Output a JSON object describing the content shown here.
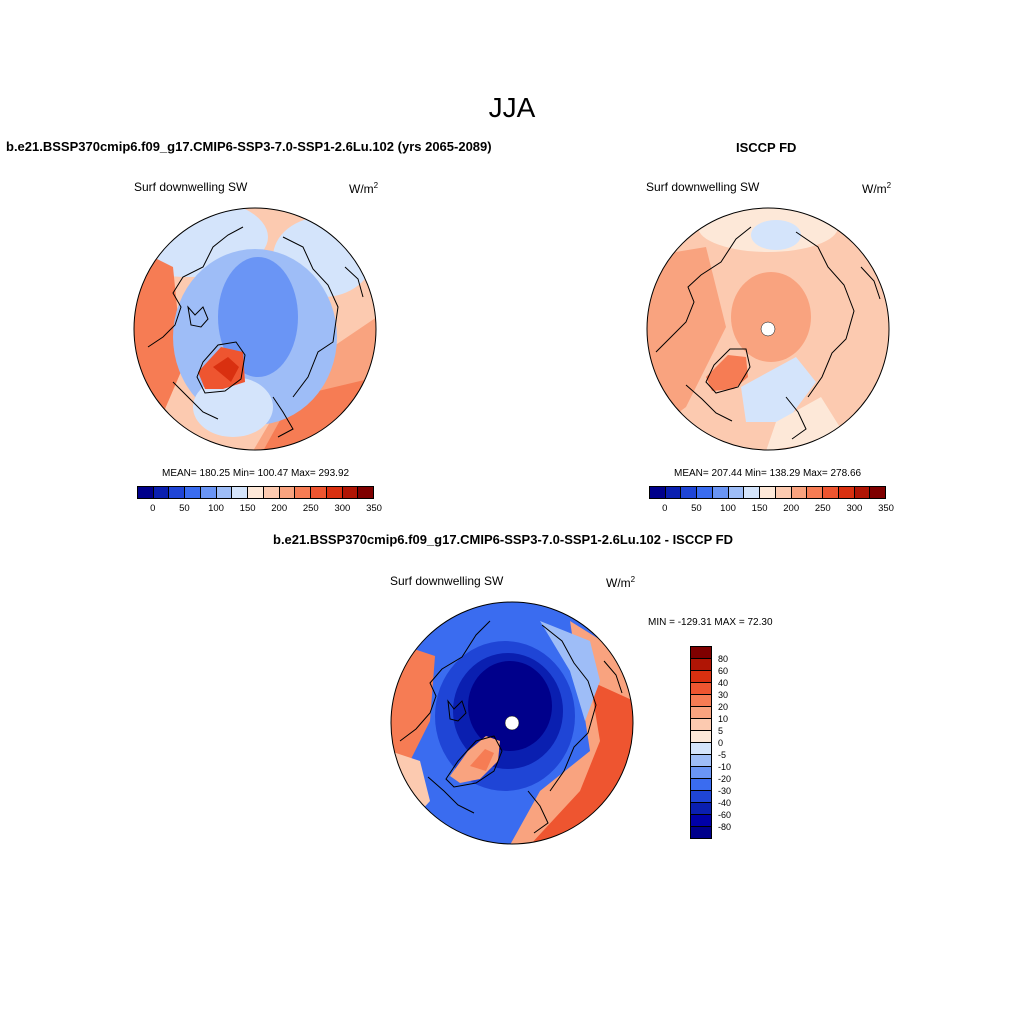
{
  "figure": {
    "title": "JJA"
  },
  "panels": {
    "model": {
      "title": "b.e21.BSSP370cmip6.f09_g17.CMIP6-SSP3-7.0-SSP1-2.6Lu.102 (yrs 2065-2089)",
      "variable": "Surf downwelling SW",
      "units": "W/m",
      "units_exp": "2",
      "stats": "MEAN= 180.25  Min= 100.47  Max= 293.92"
    },
    "obs": {
      "title": "ISCCP FD",
      "variable": "Surf downwelling SW",
      "units": "W/m",
      "units_exp": "2",
      "stats": "MEAN= 207.44  Min= 138.29  Max= 278.66"
    },
    "diff": {
      "title": "b.e21.BSSP370cmip6.f09_g17.CMIP6-SSP3-7.0-SSP1-2.6Lu.102 - ISCCP FD",
      "variable": "Surf downwelling SW",
      "units": "W/m",
      "units_exp": "2",
      "minmax": "MIN = -129.31 MAX =  72.30"
    }
  },
  "colorbars": {
    "absolute": {
      "colors": [
        "#00008b",
        "#0a1fb0",
        "#1f45d6",
        "#3a6cf0",
        "#6a95f5",
        "#9ebdf7",
        "#d4e4fb",
        "#fde8d8",
        "#fccab0",
        "#f9a37f",
        "#f67c54",
        "#ee5530",
        "#d93010",
        "#b01505",
        "#7f0000"
      ],
      "ticks": [
        "0",
        "50",
        "100",
        "150",
        "200",
        "250",
        "300",
        "350"
      ]
    },
    "difference": {
      "colors": [
        "#7f0000",
        "#b01505",
        "#d93010",
        "#ee5530",
        "#f67c54",
        "#f9a37f",
        "#fccab0",
        "#fde8d8",
        "#d4e4fb",
        "#9ebdf7",
        "#6a95f5",
        "#3a6cf0",
        "#1f45d6",
        "#0a1fb0",
        "#0000a8",
        "#00008b"
      ],
      "ticks": [
        "80",
        "60",
        "40",
        "30",
        "20",
        "10",
        "5",
        "0",
        "-5",
        "-10",
        "-20",
        "-30",
        "-40",
        "-60",
        "-80"
      ]
    }
  }
}
